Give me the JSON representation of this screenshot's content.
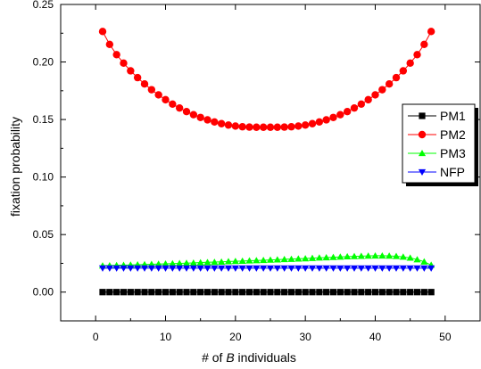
{
  "chart_data": {
    "type": "scatter",
    "title": "",
    "xlabel_prefix": "# of ",
    "xlabel_var": "B",
    "xlabel_suffix": " individuals",
    "ylabel": "fixation probability",
    "xlim": [
      -5,
      55
    ],
    "ylim": [
      -0.025,
      0.25
    ],
    "x_ticks": [
      0,
      10,
      20,
      30,
      40,
      50
    ],
    "y_ticks": [
      0.0,
      0.05,
      0.1,
      0.15,
      0.2,
      0.25
    ],
    "y_tick_labels": [
      "0.00",
      "0.05",
      "0.10",
      "0.15",
      "0.20",
      "0.25"
    ],
    "grid": false,
    "legend_position": "right",
    "x": [
      1,
      2,
      3,
      4,
      5,
      6,
      7,
      8,
      9,
      10,
      11,
      12,
      13,
      14,
      15,
      16,
      17,
      18,
      19,
      20,
      21,
      22,
      23,
      24,
      25,
      26,
      27,
      28,
      29,
      30,
      31,
      32,
      33,
      34,
      35,
      36,
      37,
      38,
      39,
      40,
      41,
      42,
      43,
      44,
      45,
      46,
      47,
      48
    ],
    "series": [
      {
        "name": "PM1",
        "color": "#000000",
        "marker": "square",
        "values": [
          0,
          0,
          0,
          0,
          0,
          0,
          0,
          0,
          0,
          0,
          0,
          0,
          0,
          0,
          0,
          0,
          0,
          0,
          0,
          0,
          0,
          0,
          0,
          0,
          0,
          0,
          0,
          0,
          0,
          0,
          0,
          0,
          0,
          0,
          0,
          0,
          0,
          0,
          0,
          0,
          0,
          0,
          0,
          0,
          0,
          0,
          0,
          0
        ]
      },
      {
        "name": "PM2",
        "color": "#ff0000",
        "marker": "circle",
        "values": [
          0.2265,
          0.2153,
          0.2064,
          0.199,
          0.1923,
          0.1864,
          0.1809,
          0.1759,
          0.1714,
          0.1672,
          0.1634,
          0.16,
          0.1569,
          0.1542,
          0.1518,
          0.1497,
          0.1479,
          0.1464,
          0.1452,
          0.1443,
          0.1437,
          0.1434,
          0.1433,
          0.1433,
          0.1433,
          0.1433,
          0.1434,
          0.1437,
          0.1443,
          0.1452,
          0.1464,
          0.1479,
          0.1497,
          0.1518,
          0.1542,
          0.1569,
          0.16,
          0.1634,
          0.1672,
          0.1714,
          0.1759,
          0.1809,
          0.1864,
          0.1923,
          0.199,
          0.2064,
          0.2153,
          0.2265
        ]
      },
      {
        "name": "PM3",
        "color": "#00ff00",
        "marker": "triangle-up",
        "values": [
          0.023,
          0.0231,
          0.0233,
          0.0234,
          0.0236,
          0.0238,
          0.024,
          0.0242,
          0.0244,
          0.0246,
          0.0248,
          0.025,
          0.0252,
          0.0254,
          0.0257,
          0.0259,
          0.0261,
          0.0263,
          0.0266,
          0.0268,
          0.027,
          0.0273,
          0.0275,
          0.0277,
          0.028,
          0.0282,
          0.0285,
          0.0287,
          0.029,
          0.0292,
          0.0295,
          0.0298,
          0.03,
          0.0303,
          0.0306,
          0.0309,
          0.0311,
          0.0313,
          0.0315,
          0.0316,
          0.0316,
          0.0315,
          0.0312,
          0.0306,
          0.0297,
          0.0283,
          0.0264,
          0.0235
        ]
      },
      {
        "name": "NFP",
        "color": "#0000ff",
        "marker": "triangle-down",
        "values": [
          0.0208,
          0.0208,
          0.0208,
          0.0208,
          0.0208,
          0.0208,
          0.0208,
          0.0208,
          0.0208,
          0.0208,
          0.0208,
          0.0208,
          0.0208,
          0.0208,
          0.0208,
          0.0208,
          0.0208,
          0.0208,
          0.0208,
          0.0208,
          0.0208,
          0.0208,
          0.0208,
          0.0208,
          0.0208,
          0.0208,
          0.0208,
          0.0208,
          0.0208,
          0.0208,
          0.0208,
          0.0208,
          0.0208,
          0.0208,
          0.0208,
          0.0208,
          0.0208,
          0.0208,
          0.0208,
          0.0208,
          0.0208,
          0.0208,
          0.0208,
          0.0208,
          0.0208,
          0.0208,
          0.0208,
          0.0208
        ]
      }
    ]
  }
}
